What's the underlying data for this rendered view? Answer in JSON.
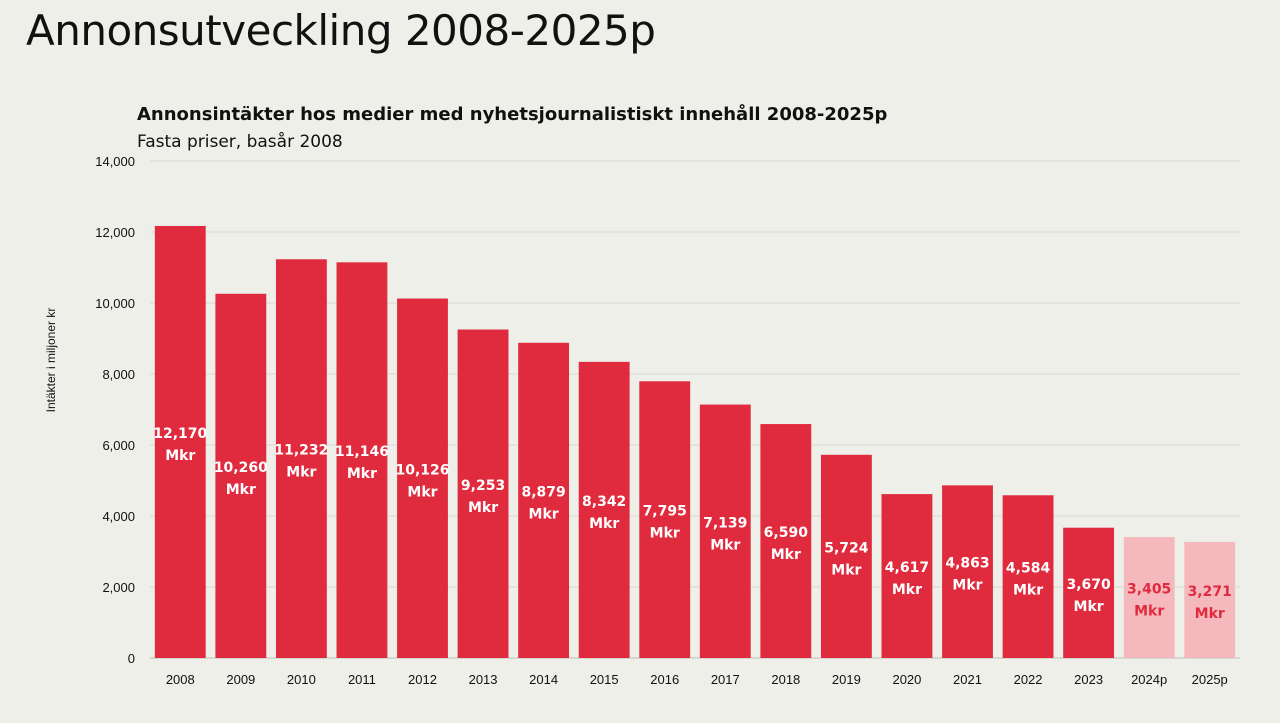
{
  "page": {
    "title": "Annonsutveckling 2008-2025p"
  },
  "chart_data": {
    "type": "bar",
    "title": "Annonsintäkter hos medier med nyhetsjournalistiskt innehåll 2008-2025p",
    "subtitle": "Fasta priser, basår 2008",
    "ylabel": "Intäkter i miljoner kr",
    "xlabel": "",
    "ylim": [
      0,
      14000
    ],
    "yticks": [
      "0",
      "2,000",
      "4,000",
      "6,000",
      "8,000",
      "10,000",
      "12,000",
      "14,000"
    ],
    "ytick_values": [
      0,
      2000,
      4000,
      6000,
      8000,
      10000,
      12000,
      14000
    ],
    "grid": true,
    "unit_suffix": "Mkr",
    "categories": [
      "2008",
      "2009",
      "2010",
      "2011",
      "2012",
      "2013",
      "2014",
      "2015",
      "2016",
      "2017",
      "2018",
      "2019",
      "2020",
      "2021",
      "2022",
      "2023",
      "2024p",
      "2025p"
    ],
    "values": [
      12170,
      10260,
      11232,
      11146,
      10126,
      9253,
      8879,
      8342,
      7795,
      7139,
      6590,
      5724,
      4617,
      4863,
      4584,
      3670,
      3405,
      3271
    ],
    "value_labels": [
      "12,170",
      "10,260",
      "11,232",
      "11,146",
      "10,126",
      "9,253",
      "8,879",
      "8,342",
      "7,795",
      "7,139",
      "6,590",
      "5,724",
      "4,617",
      "4,863",
      "4,584",
      "3,670",
      "3,405",
      "3,271"
    ],
    "forecast": [
      false,
      false,
      false,
      false,
      false,
      false,
      false,
      false,
      false,
      false,
      false,
      false,
      false,
      false,
      false,
      false,
      true,
      true
    ],
    "colors": {
      "actual": "#e02b3f",
      "forecast": "#f4b8bd",
      "actual_label": "#ffffff",
      "forecast_label": "#e02b3f",
      "grid": "#d9d9d4"
    }
  }
}
